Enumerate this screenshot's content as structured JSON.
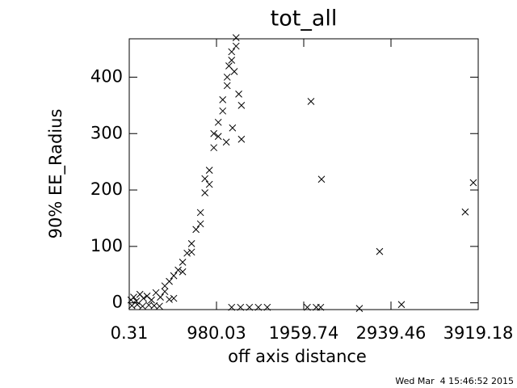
{
  "chart_data": {
    "type": "scatter",
    "title": "tot_all",
    "xlabel": "off axis distance",
    "ylabel": "90% EE_Radius",
    "timestamp": "Wed Mar  4 15:46:52 2015",
    "color": "#000000",
    "xlim": [
      0.31,
      3919.18
    ],
    "xticks": [
      0.31,
      980.03,
      1959.74,
      2939.46,
      3919.18
    ],
    "ylim": [
      -12,
      468
    ],
    "yticks": [
      0,
      100,
      200,
      300,
      400
    ],
    "x": [
      20,
      50,
      80,
      120,
      160,
      200,
      250,
      300,
      350,
      400,
      450,
      500,
      30,
      90,
      150,
      220,
      280,
      340,
      400,
      450,
      500,
      550,
      600,
      650,
      700,
      750,
      800,
      850,
      900,
      950,
      1000,
      1050,
      1100,
      1150,
      1200,
      600,
      700,
      800,
      850,
      900,
      950,
      1000,
      1050,
      1100,
      1150,
      1200,
      1180,
      1120,
      1160,
      1230,
      1260,
      1260,
      1090,
      1150,
      1250,
      1350,
      1450,
      1550,
      2000,
      2100,
      2150,
      2041,
      2159,
      2812,
      3057,
      2585,
      3773,
      3864
    ],
    "y": [
      5,
      10,
      3,
      15,
      8,
      12,
      5,
      18,
      10,
      20,
      6,
      8,
      -5,
      -3,
      -6,
      -4,
      -5,
      -6,
      30,
      38,
      48,
      58,
      72,
      88,
      105,
      130,
      160,
      195,
      235,
      275,
      320,
      360,
      400,
      430,
      455,
      55,
      90,
      140,
      220,
      210,
      300,
      295,
      340,
      385,
      445,
      470,
      410,
      420,
      310,
      370,
      350,
      290,
      285,
      -8,
      -8,
      -8,
      -8,
      -8,
      -8,
      -8,
      -8,
      357,
      219,
      91,
      -3,
      -10,
      161,
      213
    ]
  }
}
